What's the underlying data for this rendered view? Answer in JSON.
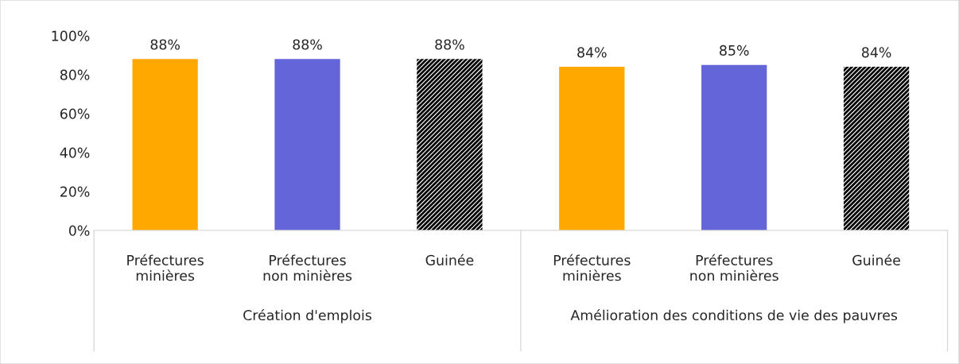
{
  "chart_data": {
    "type": "bar",
    "categories": [
      "Préfectures\nminières",
      "Préfectures\nnon minières",
      "Guinée",
      "Préfectures\nminières",
      "Préfectures\nnon minières",
      "Guinée"
    ],
    "values": [
      88,
      88,
      88,
      84,
      85,
      84
    ],
    "colors": [
      "#ffa800",
      "#6565da",
      "#000000",
      "#ffa800",
      "#6565da",
      "#000000"
    ],
    "value_labels": [
      "88%",
      "88%",
      "88%",
      "84%",
      "85%",
      "84%"
    ],
    "ylim": [
      0,
      100
    ],
    "yticks": [
      {
        "value": 0,
        "label": "0%"
      },
      {
        "value": 20,
        "label": "20%"
      },
      {
        "value": 40,
        "label": "40%"
      },
      {
        "value": 60,
        "label": "60%"
      },
      {
        "value": 80,
        "label": "80%"
      },
      {
        "value": 100,
        "label": "100%"
      }
    ],
    "annotations": [
      "Création d'emplois",
      "Amélioration des conditions de vie des pauvres"
    ],
    "grid": false,
    "legend": false
  }
}
